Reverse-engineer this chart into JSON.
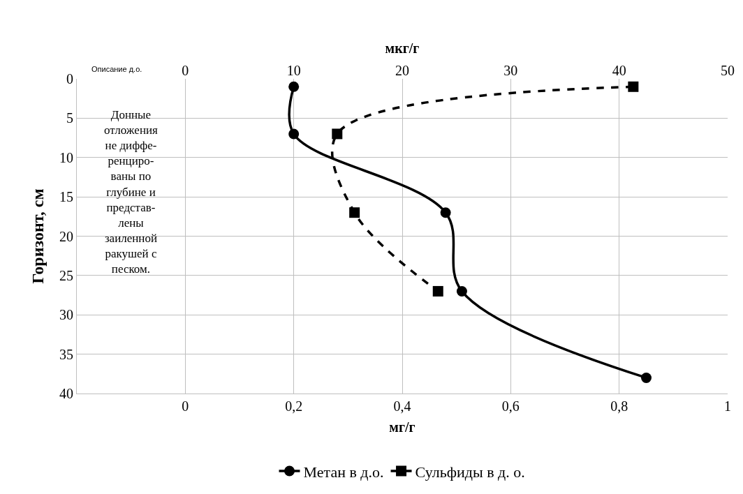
{
  "chart_data": {
    "type": "line",
    "xlabel": "мг/г",
    "x2label": "мкг/г",
    "ylabel": "Горизонт, см",
    "xlim": [
      -0.2,
      1
    ],
    "xticks": [
      {
        "value": -0.2,
        "label": null
      },
      0,
      {
        "value": 0.2,
        "label": "0,2"
      },
      {
        "value": 0.4,
        "label": "0,4"
      },
      {
        "value": 0.6,
        "label": "0,6"
      },
      {
        "value": 0.8,
        "label": "0,8"
      },
      1
    ],
    "x2lim": [
      -10,
      50
    ],
    "x2ticks": [
      {
        "value": -10,
        "label": null
      },
      0,
      10,
      20,
      30,
      40,
      50
    ],
    "ylim": [
      40,
      0
    ],
    "yticks": [
      0,
      5,
      10,
      15,
      20,
      25,
      30,
      35,
      40
    ],
    "grid": true,
    "legend": "bottom",
    "series": [
      {
        "name": "Метан в д.о.",
        "color": "#000000",
        "marker": "circle",
        "line_style": "solid",
        "x": [
          0.2,
          0.2,
          0.48,
          0.51,
          0.85
        ],
        "values": [
          1,
          7,
          17,
          27,
          38
        ]
      },
      {
        "name": "Сульфиды в д. о.",
        "color": "#000000",
        "marker": "square",
        "line_style": "dashed",
        "axis": "x2",
        "x": [
          41.3,
          14.0,
          15.6,
          23.3
        ],
        "values": [
          1,
          7,
          17,
          27
        ]
      }
    ],
    "annotations": [
      "Описание д.о.",
      "Донные\nотложения\nне диффе-\nренциро-\nваны по\nглубине и\nпредстав-\nлены\nзаиленной\nракушей с\nпеском."
    ]
  }
}
